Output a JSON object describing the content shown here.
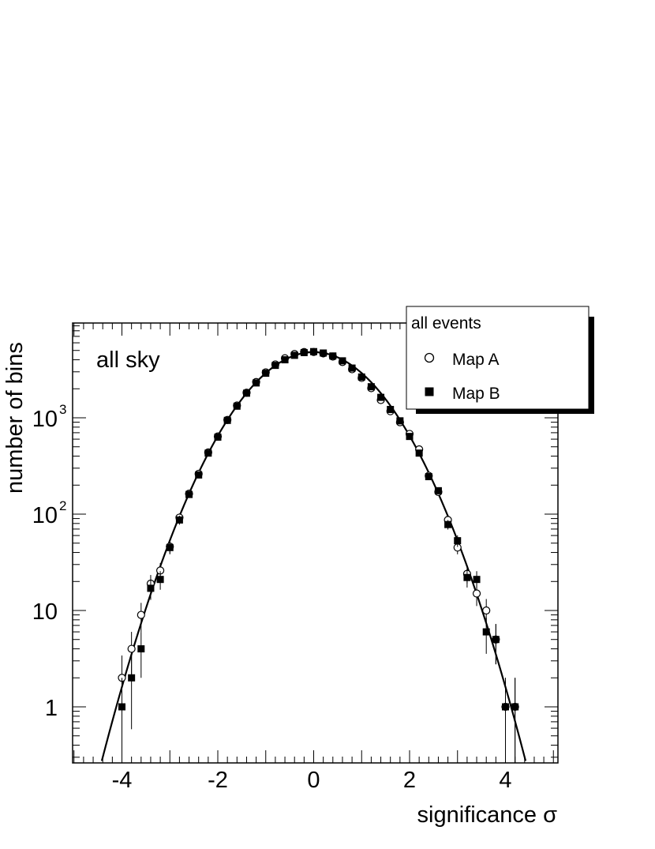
{
  "chart_data": {
    "type": "scatter",
    "title": "",
    "xlabel": "significance σ",
    "ylabel": "number of bins",
    "annotation": "all sky",
    "xlim": [
      -5,
      5
    ],
    "ylim": [
      0.26,
      9000
    ],
    "y_scale": "log",
    "x_ticks": [
      -4,
      -2,
      0,
      2,
      4
    ],
    "y_tick_labels": [
      {
        "value": 1,
        "label": "1"
      },
      {
        "value": 10,
        "label": "10"
      },
      {
        "value": 100,
        "label": "10",
        "exp": "2"
      },
      {
        "value": 1000,
        "label": "10",
        "exp": "3"
      }
    ],
    "legend": {
      "title": "all events",
      "placement": "top-right",
      "entries": [
        {
          "name": "Map A",
          "marker": "open-circle"
        },
        {
          "name": "Map B",
          "marker": "filled-square"
        }
      ]
    },
    "fit": {
      "type": "gaussian",
      "amplitude": 4800,
      "mean": 0,
      "sigma": 1
    },
    "series": [
      {
        "name": "Map A",
        "marker": "open-circle",
        "x": [
          -4.0,
          -3.8,
          -3.6,
          -3.4,
          -3.2,
          -3.0,
          -2.8,
          -2.6,
          -2.4,
          -2.2,
          -2.0,
          -1.8,
          -1.6,
          -1.4,
          -1.2,
          -1.0,
          -0.8,
          -0.6,
          -0.4,
          -0.2,
          0.0,
          0.2,
          0.4,
          0.6,
          0.8,
          1.0,
          1.2,
          1.4,
          1.6,
          1.8,
          2.0,
          2.2,
          2.4,
          2.6,
          2.8,
          3.0,
          3.2,
          3.4,
          3.6,
          3.8,
          4.0,
          4.2
        ],
        "y": [
          2,
          4,
          9,
          19,
          26,
          46,
          92,
          163,
          262,
          437,
          640,
          950,
          1340,
          1820,
          2350,
          2960,
          3580,
          4150,
          4590,
          4810,
          4820,
          4650,
          4320,
          3790,
          3190,
          2590,
          2030,
          1530,
          1170,
          900,
          680,
          470,
          250,
          170,
          87,
          45,
          24,
          15,
          10,
          5,
          1,
          1
        ]
      },
      {
        "name": "Map B",
        "marker": "filled-square",
        "x": [
          -4.0,
          -3.8,
          -3.6,
          -3.4,
          -3.2,
          -3.0,
          -2.8,
          -2.6,
          -2.4,
          -2.2,
          -2.0,
          -1.8,
          -1.6,
          -1.4,
          -1.2,
          -1.0,
          -0.8,
          -0.6,
          -0.4,
          -0.2,
          0.0,
          0.2,
          0.4,
          0.6,
          0.8,
          1.0,
          1.2,
          1.4,
          1.6,
          1.8,
          2.0,
          2.2,
          2.4,
          2.6,
          2.8,
          3.0,
          3.2,
          3.4,
          3.6,
          3.8,
          4.0,
          4.2
        ],
        "y": [
          1,
          2,
          4,
          17,
          21,
          45,
          87,
          160,
          255,
          430,
          630,
          940,
          1320,
          1800,
          2300,
          2900,
          3500,
          4000,
          4450,
          4750,
          4860,
          4700,
          4380,
          3900,
          3280,
          2650,
          2100,
          1630,
          1220,
          930,
          640,
          430,
          245,
          175,
          78,
          53,
          22,
          21,
          6,
          5,
          1,
          1
        ]
      }
    ]
  }
}
